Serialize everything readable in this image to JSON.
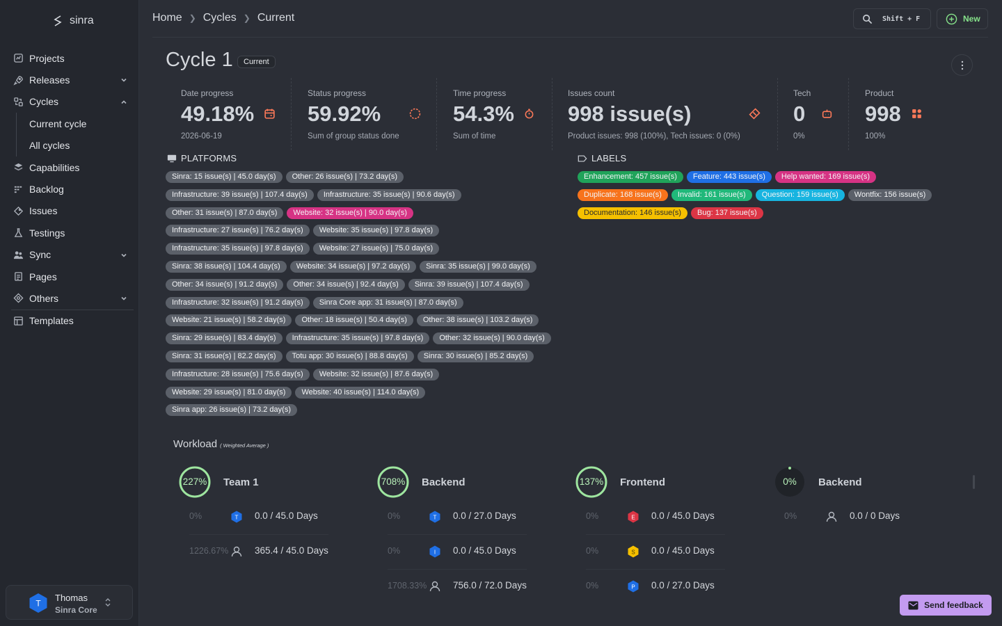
{
  "app": {
    "name": "sinra"
  },
  "sidebar": {
    "items": [
      {
        "label": "Projects",
        "icon": "projects-icon"
      },
      {
        "label": "Releases",
        "icon": "rocket-icon",
        "expandable": true
      },
      {
        "label": "Cycles",
        "icon": "cycles-icon",
        "expanded": true
      },
      {
        "label": "Current cycle",
        "sub": true
      },
      {
        "label": "All cycles",
        "sub": true
      },
      {
        "label": "Capabilities",
        "icon": "layers-icon"
      },
      {
        "label": "Backlog",
        "icon": "backlog-icon"
      },
      {
        "label": "Issues",
        "icon": "diamond-icon"
      },
      {
        "label": "Testings",
        "icon": "flask-icon"
      },
      {
        "label": "Sync",
        "icon": "users-icon",
        "expandable": true
      },
      {
        "label": "Pages",
        "icon": "page-icon"
      },
      {
        "label": "Others",
        "icon": "target-icon",
        "expandable": true
      },
      {
        "label": "Templates",
        "icon": "template-icon"
      }
    ],
    "user": {
      "name": "Thomas",
      "org": "Sinra Core",
      "initial": "T"
    }
  },
  "header": {
    "breadcrumb": [
      "Home",
      "Cycles",
      "Current"
    ],
    "search_shortcut": "Shift + F",
    "new_label": "New"
  },
  "cycle": {
    "title": "Cycle 1",
    "badge": "Current"
  },
  "stats": {
    "date": {
      "label": "Date progress",
      "value": "49.18%",
      "sub": "2026-06-19"
    },
    "status": {
      "label": "Status progress",
      "value": "59.92%",
      "sub": "Sum of group status done"
    },
    "time": {
      "label": "Time progress",
      "value": "54.3%",
      "sub": "Sum of time"
    },
    "issues": {
      "label": "Issues count",
      "value": "998 issue(s)",
      "sub": "Product issues: 998 (100%), Tech issues: 0 (0%)"
    },
    "tech": {
      "label": "Tech",
      "value": "0",
      "sub": "0%"
    },
    "product": {
      "label": "Product",
      "value": "998",
      "sub": "100%"
    }
  },
  "platforms": {
    "title": "PLATFORMS",
    "rows": [
      [
        "Sinra: 15 issue(s) | 45.0 day(s)",
        "Other: 26 issue(s) | 73.2 day(s)"
      ],
      [
        "Infrastructure: 39 issue(s) | 107.4 day(s)",
        "Infrastructure: 35 issue(s) | 90.6 day(s)"
      ],
      [
        "Other: 31 issue(s) | 87.0 day(s)",
        "Website: 32 issue(s) | 90.0 day(s)"
      ],
      [
        "Infrastructure: 27 issue(s) | 76.2 day(s)",
        "Website: 35 issue(s) | 97.8 day(s)"
      ],
      [
        "Infrastructure: 35 issue(s) | 97.8 day(s)",
        "Website: 27 issue(s) | 75.0 day(s)"
      ],
      [
        "Sinra: 38 issue(s) | 104.4 day(s)",
        "Website: 34 issue(s) | 97.2 day(s)",
        "Sinra: 35 issue(s) | 99.0 day(s)"
      ],
      [
        "Other: 34 issue(s) | 91.2 day(s)",
        "Other: 34 issue(s) | 92.4 day(s)",
        "Sinra: 39 issue(s) | 107.4 day(s)"
      ],
      [
        "Infrastructure: 32 issue(s) | 91.2 day(s)",
        "Sinra Core app: 31 issue(s) | 87.0 day(s)"
      ],
      [
        "Website: 21 issue(s) | 58.2 day(s)",
        "Other: 18 issue(s) | 50.4 day(s)",
        "Other: 38 issue(s) | 103.2 day(s)"
      ],
      [
        "Sinra: 29 issue(s) | 83.4 day(s)",
        "Infrastructure: 35 issue(s) | 97.8 day(s)",
        "Other: 32 issue(s) | 90.0 day(s)"
      ],
      [
        "Sinra: 31 issue(s) | 82.2 day(s)",
        "Totu app: 30 issue(s) | 88.8 day(s)",
        "Sinra: 30 issue(s) | 85.2 day(s)"
      ],
      [
        "Infrastructure: 28 issue(s) | 75.6 day(s)",
        "Website: 32 issue(s) | 87.6 day(s)"
      ],
      [
        "Website: 29 issue(s) | 81.0 day(s)",
        "Website: 40 issue(s) | 114.0 day(s)"
      ],
      [
        "Sinra app: 26 issue(s) | 73.2 day(s)"
      ]
    ],
    "highlight_color": "#d63384"
  },
  "labels": {
    "title": "LABELS",
    "rows": [
      [
        {
          "text": "Enhancement: 457 issue(s)",
          "color": "#20a35a"
        },
        {
          "text": "Feature: 443 issue(s)",
          "color": "#1f6fe5"
        },
        {
          "text": "Help wanted: 169 issue(s)",
          "color": "#d63384"
        }
      ],
      [
        {
          "text": "Duplicate: 168 issue(s)",
          "color": "#f7731c"
        },
        {
          "text": "Invalid: 161 issue(s)",
          "color": "#20b87a"
        },
        {
          "text": "Question: 159 issue(s)",
          "color": "#17b4e0"
        },
        {
          "text": "Wontfix: 156 issue(s)",
          "color": "#5b6069"
        }
      ],
      [
        {
          "text": "Documentation: 146 issue(s)",
          "color": "#f5c000"
        },
        {
          "text": "Bug: 137 issue(s)",
          "color": "#dc3545"
        }
      ]
    ]
  },
  "workload": {
    "title": "Workload",
    "subtitle": "( Weighted Average )",
    "teams": [
      {
        "name": "Team 1",
        "percent": "227%",
        "ring": 1.0,
        "rows": [
          {
            "pct": "0%",
            "icon": "hex-blue",
            "letter": "T",
            "days": "0.0 / 45.0 Days"
          },
          {
            "pct": "1226.67%",
            "icon": "user",
            "days": "365.4 / 45.0 Days"
          }
        ]
      },
      {
        "name": "Backend",
        "percent": "708%",
        "ring": 1.0,
        "rows": [
          {
            "pct": "0%",
            "icon": "hex-blue",
            "letter": "T",
            "days": "0.0 / 27.0 Days"
          },
          {
            "pct": "0%",
            "icon": "hex-blue",
            "letter": "I",
            "days": "0.0 / 45.0 Days"
          },
          {
            "pct": "1708.33%",
            "icon": "user",
            "days": "756.0 / 72.0 Days"
          }
        ]
      },
      {
        "name": "Frontend",
        "percent": "137%",
        "ring": 1.0,
        "rows": [
          {
            "pct": "0%",
            "icon": "hex-red",
            "letter": "E",
            "days": "0.0 / 45.0 Days"
          },
          {
            "pct": "0%",
            "icon": "hex-yellow",
            "letter": "S",
            "days": "0.0 / 45.0 Days"
          },
          {
            "pct": "0%",
            "icon": "hex-blue",
            "letter": "P",
            "days": "0.0 / 27.0 Days"
          }
        ]
      },
      {
        "name": "Backend",
        "percent": "0%",
        "ring": 0.0,
        "rows": [
          {
            "pct": "0%",
            "icon": "user",
            "days": "0.0 / 0 Days"
          }
        ]
      }
    ]
  },
  "feedback": {
    "label": "Send feedback"
  }
}
